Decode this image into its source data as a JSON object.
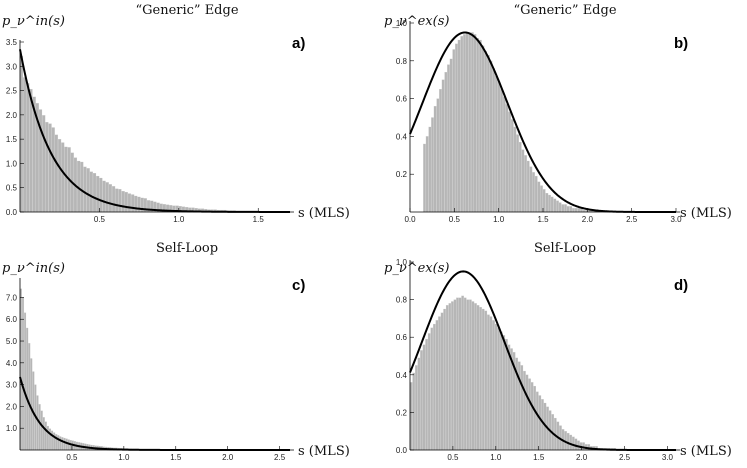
{
  "chart_data": [
    {
      "type": "bar",
      "panel": "a)",
      "title": "“Generic” Edge",
      "ylabel": "p_ν^in(s)",
      "xlabel": "s (MLS)",
      "xlim": [
        0,
        1.7
      ],
      "ylim": [
        0,
        3.5
      ],
      "xticks": [
        0.5,
        1.0,
        1.5
      ],
      "yticks": [
        0.0,
        0.5,
        1.0,
        1.5,
        2.0,
        2.5,
        3.0,
        3.5
      ],
      "curve": {
        "kind": "exp",
        "a": 3.35,
        "b": 5.2
      },
      "histogram": {
        "bin_width": 0.02,
        "x": [
          0.01,
          0.03,
          0.05,
          0.07,
          0.09,
          0.11,
          0.13,
          0.15,
          0.17,
          0.19,
          0.21,
          0.23,
          0.25,
          0.27,
          0.29,
          0.31,
          0.33,
          0.35,
          0.37,
          0.39,
          0.41,
          0.43,
          0.45,
          0.47,
          0.49,
          0.51,
          0.53,
          0.55,
          0.57,
          0.59,
          0.61,
          0.63,
          0.65,
          0.67,
          0.69,
          0.71,
          0.73,
          0.75,
          0.77,
          0.79,
          0.81,
          0.83,
          0.85,
          0.87,
          0.89,
          0.91,
          0.93,
          0.95,
          0.97,
          0.99,
          1.01,
          1.03,
          1.05,
          1.07,
          1.09,
          1.11,
          1.13,
          1.15,
          1.17,
          1.19,
          1.21,
          1.23,
          1.25,
          1.27,
          1.29,
          1.31,
          1.33,
          1.35,
          1.37,
          1.39,
          1.41,
          1.43,
          1.45,
          1.47,
          1.49,
          1.51,
          1.53,
          1.55,
          1.57,
          1.59,
          1.61,
          1.63,
          1.65,
          1.67,
          1.69
        ],
        "values": [
          3.21,
          2.77,
          2.65,
          2.53,
          2.37,
          2.24,
          2.11,
          1.99,
          1.85,
          1.82,
          1.74,
          1.59,
          1.5,
          1.43,
          1.34,
          1.33,
          1.22,
          1.12,
          1.05,
          1.03,
          0.93,
          0.9,
          0.83,
          0.8,
          0.74,
          0.7,
          0.64,
          0.61,
          0.57,
          0.53,
          0.48,
          0.47,
          0.43,
          0.41,
          0.38,
          0.36,
          0.33,
          0.31,
          0.29,
          0.28,
          0.24,
          0.23,
          0.21,
          0.19,
          0.17,
          0.16,
          0.15,
          0.14,
          0.13,
          0.13,
          0.12,
          0.11,
          0.1,
          0.09,
          0.09,
          0.08,
          0.07,
          0.07,
          0.06,
          0.05,
          0.05,
          0.05,
          0.04,
          0.04,
          0.04,
          0.03,
          0.03,
          0.03,
          0.02,
          0.02,
          0.02,
          0.02,
          0.02,
          0.02,
          0.01,
          0.01,
          0.01,
          0.01,
          0.01,
          0.01,
          0.01,
          0.01,
          0.0,
          0.0,
          0.0
        ]
      }
    },
    {
      "type": "bar",
      "panel": "b)",
      "title": "“Generic” Edge",
      "ylabel": "p_ν^ex(s)",
      "xlabel": "s (MLS)",
      "xlim": [
        0,
        3.0
      ],
      "ylim": [
        0,
        1.0
      ],
      "xticks": [
        0.0,
        0.5,
        1.0,
        1.5,
        2.0,
        2.5,
        3.0
      ],
      "yticks": [
        0.2,
        0.4,
        0.6,
        0.8,
        1.0
      ],
      "curve": {
        "kind": "gauss",
        "a": 0.95,
        "mu": 0.62,
        "sigma": 0.48
      },
      "histogram": {
        "bin_width": 0.03,
        "x": [
          0.015,
          0.045,
          0.075,
          0.105,
          0.135,
          0.165,
          0.195,
          0.225,
          0.255,
          0.285,
          0.315,
          0.345,
          0.375,
          0.405,
          0.435,
          0.465,
          0.495,
          0.525,
          0.555,
          0.585,
          0.615,
          0.645,
          0.675,
          0.705,
          0.735,
          0.765,
          0.795,
          0.825,
          0.855,
          0.885,
          0.915,
          0.945,
          0.975,
          1.005,
          1.035,
          1.065,
          1.095,
          1.125,
          1.155,
          1.185,
          1.215,
          1.245,
          1.275,
          1.305,
          1.335,
          1.365,
          1.395,
          1.425,
          1.455,
          1.485,
          1.515,
          1.545,
          1.575,
          1.605,
          1.635,
          1.665,
          1.695,
          1.725,
          1.755,
          1.785,
          1.815,
          1.845,
          1.875,
          1.905,
          1.935,
          1.965,
          1.995,
          2.025,
          2.055,
          2.085,
          2.115,
          2.145,
          2.175,
          2.205,
          2.235,
          2.265,
          2.295,
          2.325,
          2.355,
          2.385,
          2.415,
          2.445,
          2.475,
          2.505,
          2.535,
          2.565,
          2.595,
          2.625,
          2.655,
          2.685,
          2.715,
          2.745,
          2.775,
          2.805,
          2.835,
          2.865,
          2.895
        ],
        "values": [
          0.0,
          0.0,
          0.0,
          0.0,
          0.0,
          0.36,
          0.4,
          0.45,
          0.5,
          0.56,
          0.6,
          0.65,
          0.7,
          0.74,
          0.78,
          0.81,
          0.86,
          0.89,
          0.91,
          0.93,
          0.94,
          0.95,
          0.95,
          0.95,
          0.94,
          0.92,
          0.91,
          0.88,
          0.85,
          0.83,
          0.8,
          0.76,
          0.72,
          0.69,
          0.65,
          0.61,
          0.57,
          0.53,
          0.49,
          0.45,
          0.41,
          0.37,
          0.33,
          0.3,
          0.27,
          0.24,
          0.21,
          0.19,
          0.16,
          0.14,
          0.12,
          0.1,
          0.09,
          0.08,
          0.07,
          0.06,
          0.05,
          0.04,
          0.04,
          0.03,
          0.03,
          0.02,
          0.02,
          0.02,
          0.02,
          0.01,
          0.01,
          0.01,
          0.01,
          0.01,
          0.01,
          0.01,
          0.0,
          0.0,
          0.0,
          0.0,
          0.0,
          0.0,
          0.0,
          0.0,
          0.0,
          0.0,
          0.0,
          0.0,
          0.0,
          0.0,
          0.0,
          0.0,
          0.0,
          0.0,
          0.0,
          0.0,
          0.0,
          0.0,
          0.0,
          0.0,
          0.0
        ]
      }
    },
    {
      "type": "bar",
      "panel": "c)",
      "title": "Self-Loop",
      "ylabel": "p_ν^in(s)",
      "xlabel": "s (MLS)",
      "xlim": [
        0,
        2.6
      ],
      "ylim": [
        0,
        7.8
      ],
      "xticks": [
        0.5,
        1.0,
        1.5,
        2.0,
        2.5
      ],
      "yticks": [
        1,
        2,
        3,
        4,
        5,
        6,
        7
      ],
      "curve": {
        "kind": "exp",
        "a": 3.35,
        "b": 5.2
      },
      "histogram": {
        "bin_width": 0.02,
        "x": [
          0.01,
          0.03,
          0.05,
          0.07,
          0.09,
          0.11,
          0.13,
          0.15,
          0.17,
          0.19,
          0.21,
          0.23,
          0.25,
          0.27,
          0.29,
          0.31,
          0.33,
          0.35,
          0.37,
          0.39,
          0.41,
          0.43,
          0.45,
          0.47,
          0.49,
          0.51,
          0.53,
          0.55,
          0.57,
          0.59,
          0.61,
          0.63,
          0.65,
          0.67,
          0.69,
          0.71,
          0.73,
          0.75,
          0.77,
          0.79,
          0.81,
          0.83,
          0.85,
          0.87,
          0.89,
          0.91,
          0.93,
          0.95,
          0.97,
          0.99,
          1.01,
          1.03,
          1.05,
          1.07,
          1.09,
          1.11,
          1.13,
          1.15,
          1.17,
          1.19,
          1.21,
          1.23,
          1.25,
          1.27,
          1.29,
          1.31,
          1.33,
          1.35,
          1.37,
          1.39,
          1.41,
          1.43,
          1.45,
          1.47,
          1.49,
          1.51,
          1.53,
          1.55,
          1.57,
          1.59,
          1.61,
          1.63,
          1.65,
          1.67,
          1.69,
          1.71,
          1.73,
          1.75,
          1.77,
          1.79,
          1.81,
          1.83,
          1.85,
          1.87,
          1.89,
          1.91,
          1.93,
          1.95,
          1.97,
          1.99,
          2.01,
          2.03,
          2.05,
          2.07,
          2.09,
          2.11,
          2.13,
          2.15,
          2.17,
          2.19,
          2.21,
          2.23,
          2.25,
          2.27,
          2.29,
          2.31,
          2.33,
          2.35,
          2.37,
          2.39,
          2.41,
          2.43,
          2.45,
          2.47,
          2.49,
          2.51,
          2.53,
          2.55,
          2.57,
          2.59
        ],
        "values": [
          7.4,
          7.0,
          6.3,
          5.6,
          4.9,
          4.2,
          3.6,
          3.0,
          2.5,
          2.1,
          1.8,
          1.5,
          1.3,
          1.1,
          0.98,
          0.88,
          0.8,
          0.72,
          0.67,
          0.62,
          0.58,
          0.55,
          0.52,
          0.48,
          0.45,
          0.43,
          0.4,
          0.37,
          0.35,
          0.33,
          0.31,
          0.29,
          0.27,
          0.25,
          0.23,
          0.22,
          0.2,
          0.19,
          0.18,
          0.17,
          0.15,
          0.14,
          0.13,
          0.12,
          0.11,
          0.1,
          0.1,
          0.09,
          0.08,
          0.08,
          0.07,
          0.07,
          0.06,
          0.06,
          0.05,
          0.05,
          0.05,
          0.04,
          0.04,
          0.04,
          0.03,
          0.03,
          0.03,
          0.03,
          0.03,
          0.02,
          0.02,
          0.02,
          0.02,
          0.02,
          0.02,
          0.02,
          0.01,
          0.01,
          0.01,
          0.01,
          0.01,
          0.01,
          0.01,
          0.01,
          0.01,
          0.01,
          0.01,
          0.01,
          0.01,
          0.0,
          0.0,
          0.0,
          0.0,
          0.0,
          0.0,
          0.0,
          0.0,
          0.0,
          0.0,
          0.0,
          0.0,
          0.0,
          0.0,
          0.0,
          0.0,
          0.0,
          0.0,
          0.0,
          0.0,
          0.0,
          0.0,
          0.0,
          0.0,
          0.0,
          0.0,
          0.0,
          0.0,
          0.0,
          0.0,
          0.0,
          0.0,
          0.0,
          0.0,
          0.0,
          0.0,
          0.0,
          0.0,
          0.0,
          0.0,
          0.0,
          0.0,
          0.0,
          0.0,
          0.0
        ]
      }
    },
    {
      "type": "bar",
      "panel": "d)",
      "title": "Self-Loop",
      "ylabel": "p_ν^ex(s)",
      "xlabel": "s (MLS)",
      "xlim": [
        0,
        3.1
      ],
      "ylim": [
        0,
        1.0
      ],
      "xticks": [
        0.5,
        1.0,
        1.5,
        2.0,
        2.5,
        3.0
      ],
      "yticks": [
        0.0,
        0.2,
        0.4,
        0.6,
        0.8,
        1.0
      ],
      "curve": {
        "kind": "gauss",
        "a": 0.95,
        "mu": 0.62,
        "sigma": 0.48
      },
      "histogram": {
        "bin_width": 0.03,
        "x": [
          0.015,
          0.045,
          0.075,
          0.105,
          0.135,
          0.165,
          0.195,
          0.225,
          0.255,
          0.285,
          0.315,
          0.345,
          0.375,
          0.405,
          0.435,
          0.465,
          0.495,
          0.525,
          0.555,
          0.585,
          0.615,
          0.645,
          0.675,
          0.705,
          0.735,
          0.765,
          0.795,
          0.825,
          0.855,
          0.885,
          0.915,
          0.945,
          0.975,
          1.005,
          1.035,
          1.065,
          1.095,
          1.125,
          1.155,
          1.185,
          1.215,
          1.245,
          1.275,
          1.305,
          1.335,
          1.365,
          1.395,
          1.425,
          1.455,
          1.485,
          1.515,
          1.545,
          1.575,
          1.605,
          1.635,
          1.665,
          1.695,
          1.725,
          1.755,
          1.785,
          1.815,
          1.845,
          1.875,
          1.905,
          1.935,
          1.965,
          1.995,
          2.025,
          2.055,
          2.085,
          2.115,
          2.145,
          2.175,
          2.205,
          2.235,
          2.265,
          2.295,
          2.325,
          2.355,
          2.385,
          2.415,
          2.445,
          2.475,
          2.505,
          2.535,
          2.565,
          2.595,
          2.625,
          2.655,
          2.685,
          2.715,
          2.745,
          2.775,
          2.805,
          2.835,
          2.865,
          2.895,
          2.925,
          2.955,
          2.985
        ],
        "values": [
          0.36,
          0.41,
          0.45,
          0.49,
          0.53,
          0.56,
          0.59,
          0.62,
          0.65,
          0.67,
          0.69,
          0.71,
          0.73,
          0.75,
          0.77,
          0.78,
          0.79,
          0.8,
          0.81,
          0.81,
          0.82,
          0.81,
          0.8,
          0.8,
          0.79,
          0.78,
          0.77,
          0.76,
          0.75,
          0.74,
          0.72,
          0.71,
          0.69,
          0.67,
          0.65,
          0.63,
          0.61,
          0.59,
          0.56,
          0.54,
          0.52,
          0.49,
          0.47,
          0.45,
          0.42,
          0.4,
          0.38,
          0.36,
          0.34,
          0.31,
          0.29,
          0.27,
          0.25,
          0.23,
          0.21,
          0.19,
          0.17,
          0.15,
          0.13,
          0.11,
          0.1,
          0.09,
          0.08,
          0.07,
          0.06,
          0.05,
          0.04,
          0.04,
          0.03,
          0.03,
          0.02,
          0.02,
          0.02,
          0.01,
          0.01,
          0.01,
          0.01,
          0.01,
          0.01,
          0.01,
          0.0,
          0.0,
          0.0,
          0.0,
          0.0,
          0.0,
          0.0,
          0.0,
          0.0,
          0.0,
          0.0,
          0.0,
          0.0,
          0.0,
          0.0,
          0.0,
          0.0,
          0.0,
          0.0,
          0.0
        ]
      }
    }
  ]
}
